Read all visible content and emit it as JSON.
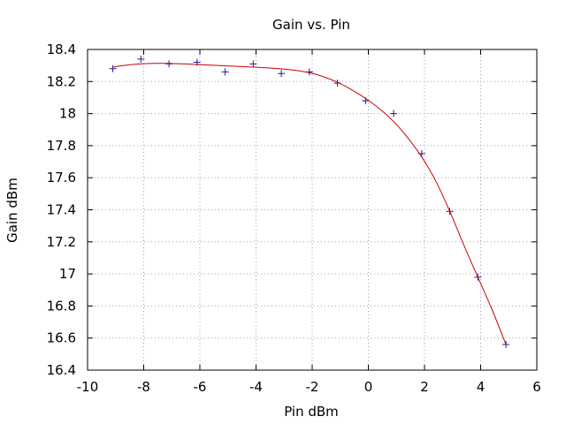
{
  "chart_data": {
    "type": "scatter",
    "title": "Gain vs. Pin",
    "xlabel": "Pin dBm",
    "ylabel": "Gain dBm",
    "xlim": [
      -10,
      6
    ],
    "ylim": [
      16.4,
      18.4
    ],
    "xticks": [
      "-10",
      "-8",
      "-6",
      "-4",
      "-2",
      "0",
      "2",
      "4",
      "6"
    ],
    "yticks": [
      "16.4",
      "16.6",
      "16.8",
      "17",
      "17.2",
      "17.4",
      "17.6",
      "17.8",
      "18",
      "18.2",
      "18.4"
    ],
    "grid": true,
    "series": [
      {
        "style": "points",
        "marker": "+",
        "color": "#1a1aa0",
        "x": [
          -9.1,
          -8.1,
          -7.1,
          -6.1,
          -5.1,
          -4.1,
          -3.1,
          -2.1,
          -1.1,
          -0.1,
          0.9,
          1.9,
          2.9,
          3.9,
          4.9
        ],
        "y": [
          18.28,
          18.34,
          18.31,
          18.32,
          18.26,
          18.31,
          18.25,
          18.26,
          18.19,
          18.08,
          18.0,
          17.75,
          17.39,
          16.98,
          16.56
        ]
      },
      {
        "style": "line",
        "color": "#cc0000",
        "x": [
          -9.1,
          -8.6,
          -8.1,
          -7.6,
          -7.1,
          -6.6,
          -6.1,
          -5.6,
          -5.1,
          -4.6,
          -4.1,
          -3.6,
          -3.1,
          -2.6,
          -2.1,
          -1.6,
          -1.1,
          -0.6,
          -0.1,
          0.4,
          0.9,
          1.4,
          1.9,
          2.4,
          2.9,
          3.4,
          3.9,
          4.4,
          4.9
        ],
        "y": [
          18.29,
          18.302,
          18.31,
          18.313,
          18.313,
          18.31,
          18.306,
          18.302,
          18.298,
          18.294,
          18.29,
          18.285,
          18.279,
          18.27,
          18.255,
          18.23,
          18.195,
          18.15,
          18.095,
          18.03,
          17.95,
          17.85,
          17.73,
          17.58,
          17.39,
          17.18,
          16.98,
          16.78,
          16.56
        ]
      }
    ]
  }
}
